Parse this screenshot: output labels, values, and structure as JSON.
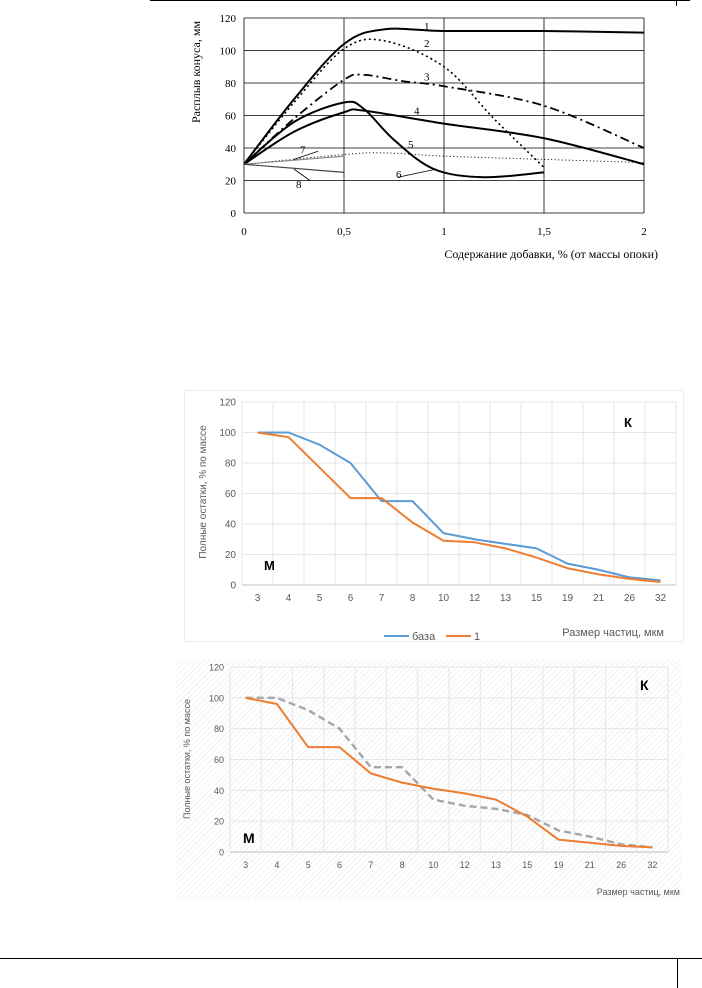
{
  "page": {
    "colors": {
      "line": "#000000",
      "blue": "#5b9bd5",
      "orange": "#ed7d31",
      "gray": "#a6a6a6",
      "grid": "#d9d9d9"
    }
  },
  "chart_data": [
    {
      "type": "line",
      "title": "",
      "xlabel": "Содержание добавки, % (от массы опоки)",
      "ylabel": "Расплыв конуса, мм",
      "xlim": [
        0,
        2
      ],
      "ylim": [
        0,
        120
      ],
      "x_ticks": [
        "0",
        "0,5",
        "1",
        "1,5",
        "2"
      ],
      "y_ticks": [
        "0",
        "20",
        "40",
        "60",
        "80",
        "100",
        "120"
      ],
      "grid": true,
      "series": [
        {
          "name": "1",
          "style": "solid",
          "x": [
            0,
            0.25,
            0.5,
            0.7,
            1,
            1.5,
            2
          ],
          "values": [
            30,
            70,
            104,
            113,
            112,
            112,
            111
          ]
        },
        {
          "name": "2",
          "style": "dotted",
          "x": [
            0,
            0.25,
            0.5,
            0.7,
            1,
            1.25,
            1.5
          ],
          "values": [
            30,
            68,
            101,
            106,
            90,
            58,
            28
          ]
        },
        {
          "name": "3",
          "style": "dashdot",
          "x": [
            0,
            0.25,
            0.5,
            0.6,
            0.8,
            1,
            1.5,
            2
          ],
          "values": [
            30,
            58,
            82,
            85,
            81,
            78,
            66,
            40
          ]
        },
        {
          "name": "4",
          "style": "solid",
          "x": [
            0,
            0.25,
            0.5,
            0.6,
            1,
            1.5,
            2
          ],
          "values": [
            30,
            50,
            62,
            63,
            55,
            46,
            30
          ]
        },
        {
          "name": "5",
          "style": "dotted-fine",
          "x": [
            0,
            0.5,
            0.7,
            1,
            1.5,
            2
          ],
          "values": [
            30,
            36,
            37,
            35,
            33,
            31
          ]
        },
        {
          "name": "6",
          "style": "solid",
          "x": [
            0,
            0.25,
            0.5,
            0.6,
            0.75,
            0.95,
            1.2,
            1.5
          ],
          "values": [
            30,
            56,
            68,
            64,
            45,
            27,
            22,
            25
          ]
        },
        {
          "name": "7",
          "style": "solid-gray",
          "x": [
            0,
            0.5
          ],
          "values": [
            30,
            35
          ]
        },
        {
          "name": "8",
          "style": "solid-thin",
          "x": [
            0,
            0.5
          ],
          "values": [
            30,
            25
          ]
        }
      ]
    },
    {
      "type": "line",
      "title": "",
      "xlabel": "Размер частиц, мкм",
      "ylabel": "Полные остатки, % по массе",
      "categories": [
        "3",
        "4",
        "5",
        "6",
        "7",
        "8",
        "10",
        "12",
        "13",
        "15",
        "19",
        "21",
        "26",
        "32"
      ],
      "ylim": [
        0,
        120
      ],
      "y_ticks": [
        "0",
        "20",
        "40",
        "60",
        "80",
        "100",
        "120"
      ],
      "grid": true,
      "legend": "bottom",
      "annotations": [
        "К",
        "М"
      ],
      "series": [
        {
          "name": "база",
          "color": "#5b9bd5",
          "values": [
            100,
            100,
            92,
            80,
            55,
            55,
            34,
            30,
            27,
            24,
            14,
            10,
            5,
            3
          ]
        },
        {
          "name": "1",
          "color": "#ed7d31",
          "values": [
            100,
            97,
            77,
            57,
            57,
            41,
            29,
            28,
            24,
            18,
            11,
            7,
            4,
            2
          ]
        }
      ]
    },
    {
      "type": "line",
      "title": "",
      "xlabel": "Размер частиц, мкм",
      "ylabel": "Полные остатки, % по массе",
      "categories": [
        "3",
        "4",
        "5",
        "6",
        "7",
        "8",
        "10",
        "12",
        "13",
        "15",
        "19",
        "21",
        "26",
        "32"
      ],
      "ylim": [
        0,
        120
      ],
      "y_ticks": [
        "0",
        "20",
        "40",
        "60",
        "80",
        "100",
        "120"
      ],
      "grid": true,
      "annotations": [
        "К",
        "М"
      ],
      "series": [
        {
          "color": "#a6a6a6",
          "style": "dashed",
          "values": [
            100,
            100,
            92,
            80,
            55,
            55,
            34,
            30,
            28,
            24,
            14,
            10,
            5,
            3
          ]
        },
        {
          "color": "#ed7d31",
          "style": "solid",
          "values": [
            100,
            96,
            68,
            68,
            51,
            45,
            41,
            38,
            34,
            23,
            8,
            6,
            4,
            3
          ]
        }
      ]
    }
  ]
}
